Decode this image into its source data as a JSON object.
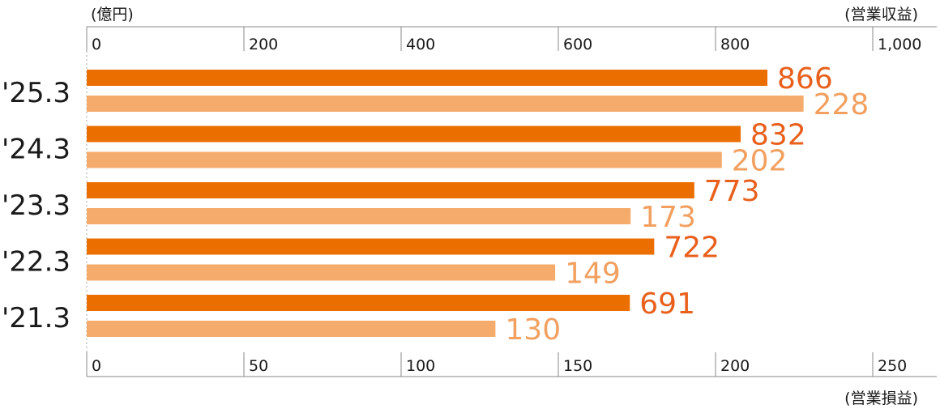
{
  "chart_data": {
    "type": "bar",
    "orientation": "horizontal",
    "unit_label": "(億円)",
    "top_axis": {
      "title": "(営業収益)",
      "range": [
        0,
        1000
      ],
      "ticks": [
        0,
        200,
        400,
        600,
        800,
        1000
      ],
      "tick_labels": [
        "0",
        "200",
        "400",
        "600",
        "800",
        "1,000"
      ]
    },
    "bottom_axis": {
      "title": "(営業損益)",
      "range": [
        0,
        250
      ],
      "ticks": [
        0,
        50,
        100,
        150,
        200,
        250
      ],
      "tick_labels": [
        "0",
        "50",
        "100",
        "150",
        "200",
        "250"
      ]
    },
    "categories": [
      "'25.3",
      "'24.3",
      "'23.3",
      "'22.3",
      "'21.3"
    ],
    "series": [
      {
        "name": "営業収益",
        "axis": "top",
        "color": "#eb6e00",
        "label_color": "#e8601c",
        "values": [
          866,
          832,
          773,
          722,
          691
        ]
      },
      {
        "name": "営業損益",
        "axis": "bottom",
        "color": "#f5ab6c",
        "label_color": "#f2a060",
        "values": [
          228,
          202,
          173,
          149,
          130
        ]
      }
    ]
  }
}
